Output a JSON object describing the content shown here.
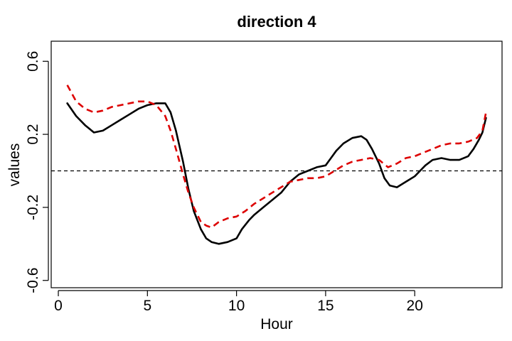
{
  "chart_data": {
    "type": "line",
    "title": "direction 4",
    "xlabel": "Hour",
    "ylabel": "values",
    "xlim": [
      -0.4,
      24.9
    ],
    "ylim": [
      -0.64,
      0.71
    ],
    "x_ticks": [
      0,
      5,
      10,
      15,
      20
    ],
    "x_tick_labels": [
      "0",
      "5",
      "10",
      "15",
      "20"
    ],
    "y_ticks": [
      0.6,
      0.2,
      -0.2,
      -0.6
    ],
    "y_tick_labels": [
      "0.6",
      "0.2",
      "-0.2",
      "-0.6"
    ],
    "reference_line": {
      "y": 0,
      "style": "dashed",
      "color": "#000000"
    },
    "grid": false,
    "series": [
      {
        "color": "#000000",
        "style": "solid",
        "x": [
          0.5,
          1,
          1.5,
          2,
          2.5,
          3,
          3.5,
          4,
          4.5,
          5,
          5.5,
          6,
          6.3,
          6.6,
          7,
          7.3,
          7.6,
          8,
          8.3,
          8.6,
          9,
          9.5,
          10,
          10.3,
          10.7,
          11,
          11.5,
          12,
          12.5,
          13,
          13.5,
          14,
          14.5,
          15,
          15.3,
          15.6,
          16,
          16.5,
          17,
          17.3,
          17.6,
          18,
          18.3,
          18.6,
          19,
          19.5,
          20,
          20.3,
          20.6,
          21,
          21.5,
          22,
          22.5,
          23,
          23.3,
          23.6,
          23.8,
          24
        ],
        "values": [
          0.37,
          0.3,
          0.25,
          0.21,
          0.22,
          0.25,
          0.28,
          0.31,
          0.34,
          0.36,
          0.37,
          0.37,
          0.32,
          0.22,
          0.05,
          -0.1,
          -0.22,
          -0.32,
          -0.37,
          -0.39,
          -0.4,
          -0.39,
          -0.37,
          -0.32,
          -0.27,
          -0.24,
          -0.2,
          -0.16,
          -0.12,
          -0.06,
          -0.02,
          0.0,
          0.02,
          0.03,
          0.07,
          0.11,
          0.15,
          0.18,
          0.19,
          0.17,
          0.12,
          0.04,
          -0.04,
          -0.08,
          -0.09,
          -0.06,
          -0.03,
          0.0,
          0.03,
          0.06,
          0.07,
          0.06,
          0.06,
          0.08,
          0.12,
          0.17,
          0.21,
          0.29
        ]
      },
      {
        "color": "#dd0000",
        "style": "dashed",
        "x": [
          0.5,
          1,
          1.5,
          2,
          2.5,
          3,
          3.5,
          4,
          4.5,
          5,
          5.5,
          6,
          6.3,
          6.6,
          7,
          7.3,
          7.6,
          8,
          8.3,
          8.6,
          9,
          9.5,
          10,
          10.5,
          11,
          11.5,
          12,
          12.5,
          13,
          13.5,
          14,
          14.5,
          15,
          15.5,
          16,
          16.5,
          17,
          17.5,
          18,
          18.5,
          19,
          19.5,
          20,
          20.5,
          21,
          21.5,
          22,
          22.5,
          23,
          23.5,
          23.8,
          24
        ],
        "values": [
          0.47,
          0.38,
          0.34,
          0.32,
          0.33,
          0.35,
          0.36,
          0.37,
          0.38,
          0.38,
          0.36,
          0.3,
          0.22,
          0.12,
          -0.02,
          -0.12,
          -0.2,
          -0.28,
          -0.3,
          -0.31,
          -0.28,
          -0.26,
          -0.25,
          -0.22,
          -0.18,
          -0.15,
          -0.12,
          -0.09,
          -0.06,
          -0.05,
          -0.04,
          -0.04,
          -0.03,
          0.0,
          0.03,
          0.05,
          0.06,
          0.07,
          0.06,
          0.02,
          0.04,
          0.07,
          0.08,
          0.1,
          0.12,
          0.14,
          0.15,
          0.15,
          0.16,
          0.18,
          0.22,
          0.32
        ]
      }
    ]
  }
}
